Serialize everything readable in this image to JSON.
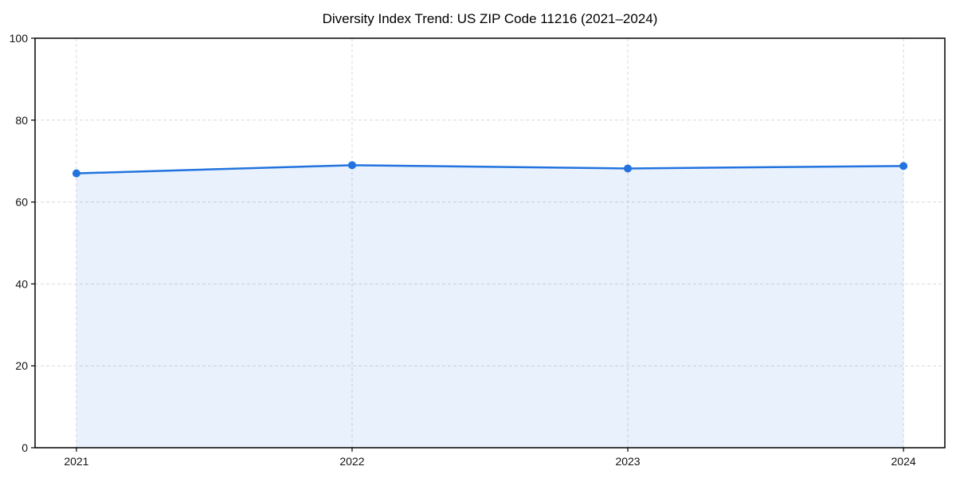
{
  "chart_data": {
    "type": "area",
    "title": "Diversity Index Trend: US ZIP Code 11216 (2021–2024)",
    "x_categories": [
      "2021",
      "2022",
      "2023",
      "2024"
    ],
    "values": [
      67,
      69,
      68.2,
      68.8
    ],
    "xlabel": "",
    "ylabel": "",
    "ylim": [
      0,
      100
    ],
    "yticks": [
      0,
      20,
      40,
      60,
      80,
      100
    ],
    "grid": {
      "visible": true,
      "style": "dashed",
      "color": "#d9d9d9"
    },
    "legend": {
      "visible": false
    },
    "marker": "circle",
    "colors": {
      "line": "#2273df",
      "marker": "#2273df",
      "fill": "#2273df",
      "fill_opacity": 0.1,
      "axis": "#000000",
      "tick_label": "#111111",
      "title": "#000000",
      "background": "#ffffff"
    }
  }
}
